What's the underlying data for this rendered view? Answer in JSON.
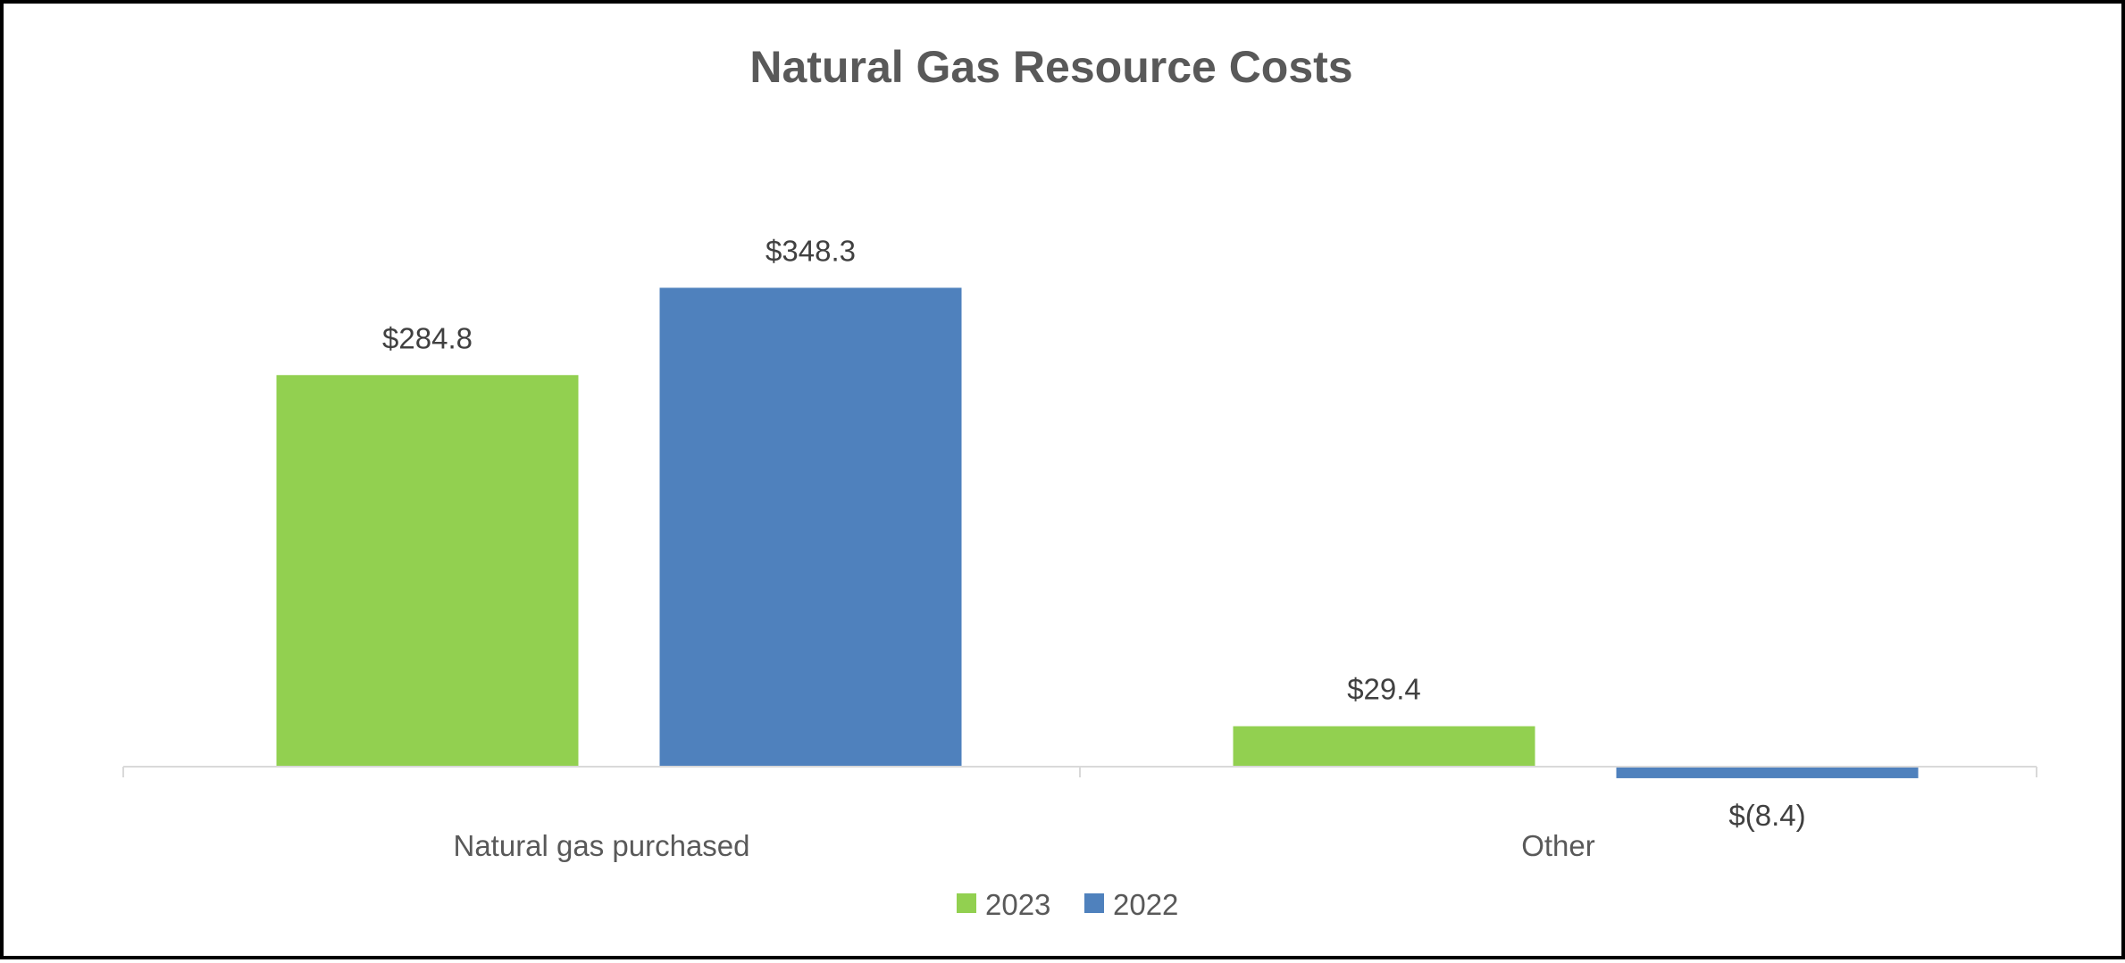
{
  "chart_data": {
    "type": "bar",
    "title": "Natural Gas Resource Costs",
    "categories": [
      "Natural gas purchased",
      "Other"
    ],
    "series": [
      {
        "name": "2023",
        "color": "#92d050",
        "values": [
          284.8,
          29.4
        ],
        "labels": [
          "$284.8",
          "$29.4"
        ]
      },
      {
        "name": "2022",
        "color": "#4f81bd",
        "values": [
          348.3,
          -8.4
        ],
        "labels": [
          "$348.3",
          "$(8.4)"
        ]
      }
    ],
    "xlabel": "",
    "ylabel": "",
    "ylim": [
      -8.4,
      348.3
    ],
    "grid": false,
    "legend": "bottom",
    "axis_color": "#d9d9d9"
  }
}
